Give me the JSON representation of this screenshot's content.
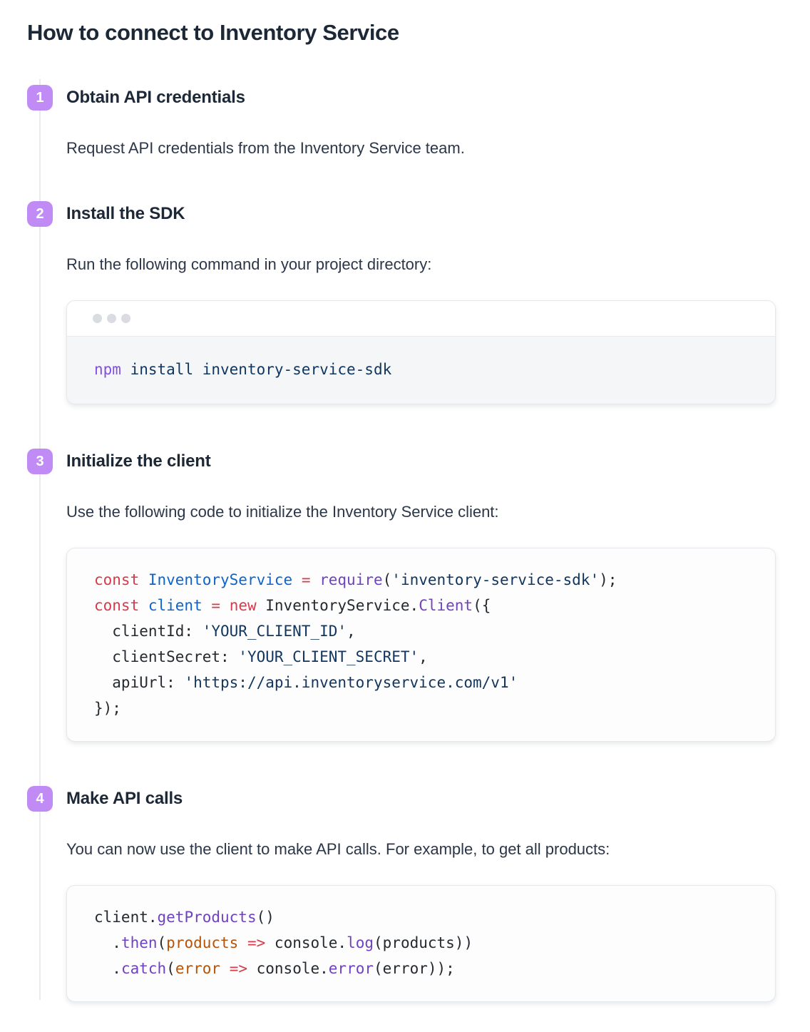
{
  "page": {
    "title": "How to connect to Inventory Service"
  },
  "colors": {
    "badge_background": "#c18bf6",
    "badge_text": "#ffffff",
    "timeline_connector": "#e9eaee",
    "terminal_dot": "#d9dce1",
    "terminal_body_background": "#f4f6f8",
    "code_card_background": "#fdfdfd",
    "card_border": "#e4e7eb",
    "heading_text": "#1d2837",
    "body_text": "#2b3648"
  },
  "palette": {
    "keyword": "#d73a49",
    "function": "#6f42c1",
    "string": "#10355f",
    "param": "#b45309",
    "declaration": "#0d64cc",
    "plain": "#24292f",
    "command": "#8250df"
  },
  "terminal_window": {
    "dot_count": 3
  },
  "steps": [
    {
      "number": "1",
      "title": "Obtain API credentials",
      "description": "Request API credentials from the Inventory Service team."
    },
    {
      "number": "2",
      "title": "Install the SDK",
      "description": "Run the following command in your project directory:",
      "code": {
        "style": "terminal-window",
        "lines": [
          [
            {
              "text": "npm",
              "token": "command"
            },
            {
              "text": " install inventory-service-sdk",
              "token": "string"
            }
          ]
        ]
      }
    },
    {
      "number": "3",
      "title": "Initialize the client",
      "description": "Use the following code to initialize the Inventory Service client:",
      "code": {
        "style": "plain-card",
        "lines": [
          [
            {
              "text": "const ",
              "token": "keyword"
            },
            {
              "text": "InventoryService",
              "token": "declaration"
            },
            {
              "text": " ",
              "token": "plain"
            },
            {
              "text": "=",
              "token": "keyword"
            },
            {
              "text": " ",
              "token": "plain"
            },
            {
              "text": "require",
              "token": "function"
            },
            {
              "text": "(",
              "token": "plain"
            },
            {
              "text": "'inventory-service-sdk'",
              "token": "string"
            },
            {
              "text": ");",
              "token": "plain"
            }
          ],
          [
            {
              "text": "const ",
              "token": "keyword"
            },
            {
              "text": "client",
              "token": "declaration"
            },
            {
              "text": " ",
              "token": "plain"
            },
            {
              "text": "=",
              "token": "keyword"
            },
            {
              "text": " ",
              "token": "plain"
            },
            {
              "text": "new",
              "token": "keyword"
            },
            {
              "text": " InventoryService.",
              "token": "plain"
            },
            {
              "text": "Client",
              "token": "function"
            },
            {
              "text": "({",
              "token": "plain"
            }
          ],
          [
            {
              "text": "  clientId: ",
              "token": "plain"
            },
            {
              "text": "'YOUR_CLIENT_ID'",
              "token": "string"
            },
            {
              "text": ",",
              "token": "plain"
            }
          ],
          [
            {
              "text": "  clientSecret: ",
              "token": "plain"
            },
            {
              "text": "'YOUR_CLIENT_SECRET'",
              "token": "string"
            },
            {
              "text": ",",
              "token": "plain"
            }
          ],
          [
            {
              "text": "  apiUrl: ",
              "token": "plain"
            },
            {
              "text": "'https://api.inventoryservice.com/v1'",
              "token": "string"
            }
          ],
          [
            {
              "text": "});",
              "token": "plain"
            }
          ]
        ]
      }
    },
    {
      "number": "4",
      "title": "Make API calls",
      "description": "You can now use the client to make API calls. For example, to get all products:",
      "code": {
        "style": "plain-card",
        "lines": [
          [
            {
              "text": "client.",
              "token": "plain"
            },
            {
              "text": "getProducts",
              "token": "function"
            },
            {
              "text": "()",
              "token": "plain"
            }
          ],
          [
            {
              "text": "  .",
              "token": "plain"
            },
            {
              "text": "then",
              "token": "function"
            },
            {
              "text": "(",
              "token": "plain"
            },
            {
              "text": "products",
              "token": "param"
            },
            {
              "text": " ",
              "token": "plain"
            },
            {
              "text": "=>",
              "token": "keyword"
            },
            {
              "text": " console.",
              "token": "plain"
            },
            {
              "text": "log",
              "token": "function"
            },
            {
              "text": "(products))",
              "token": "plain"
            }
          ],
          [
            {
              "text": "  .",
              "token": "plain"
            },
            {
              "text": "catch",
              "token": "function"
            },
            {
              "text": "(",
              "token": "plain"
            },
            {
              "text": "error",
              "token": "param"
            },
            {
              "text": " ",
              "token": "plain"
            },
            {
              "text": "=>",
              "token": "keyword"
            },
            {
              "text": " console.",
              "token": "plain"
            },
            {
              "text": "error",
              "token": "function"
            },
            {
              "text": "(error));",
              "token": "plain"
            }
          ]
        ]
      }
    }
  ]
}
